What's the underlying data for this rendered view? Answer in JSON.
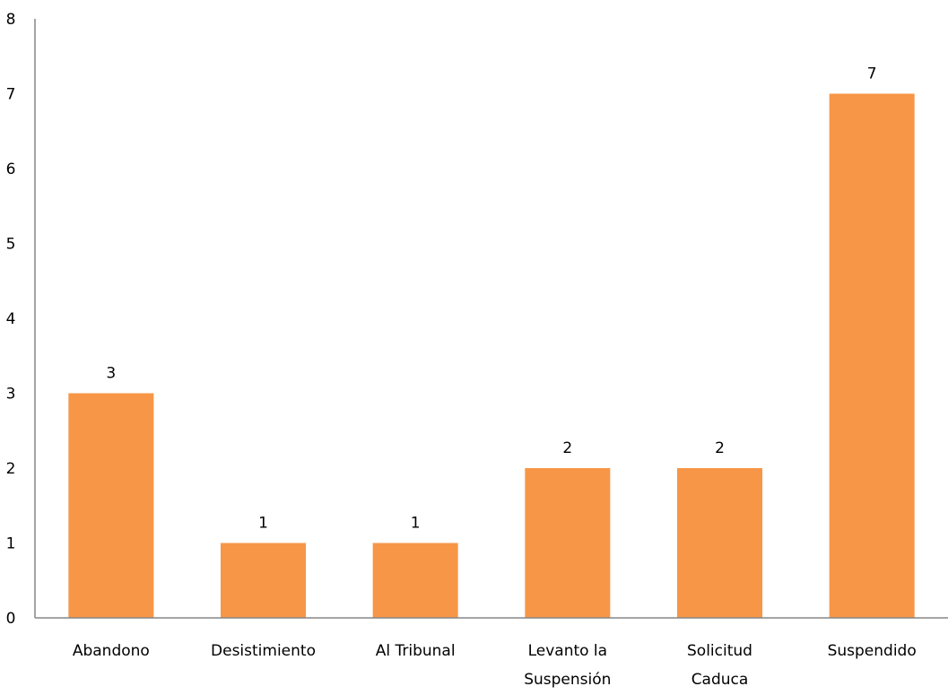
{
  "chart_data": {
    "type": "bar",
    "title": "",
    "xlabel": "",
    "ylabel": "",
    "categories": [
      [
        "Abandono"
      ],
      [
        "Desistimiento"
      ],
      [
        "Al Tribunal"
      ],
      [
        "Levanto la",
        "Suspensión"
      ],
      [
        "Solicitud",
        "Caduca"
      ],
      [
        "Suspendido"
      ]
    ],
    "values": [
      3,
      1,
      1,
      2,
      2,
      7
    ],
    "ylim": [
      0,
      8
    ],
    "yticks": [
      "0",
      "1",
      "2",
      "3",
      "4",
      "5",
      "6",
      "7",
      "8"
    ],
    "data_labels": [
      "3",
      "1",
      "1",
      "2",
      "2",
      "7"
    ],
    "grid": false,
    "legend": "none",
    "bar_color": "#F79646",
    "axis_color": "#868686"
  }
}
